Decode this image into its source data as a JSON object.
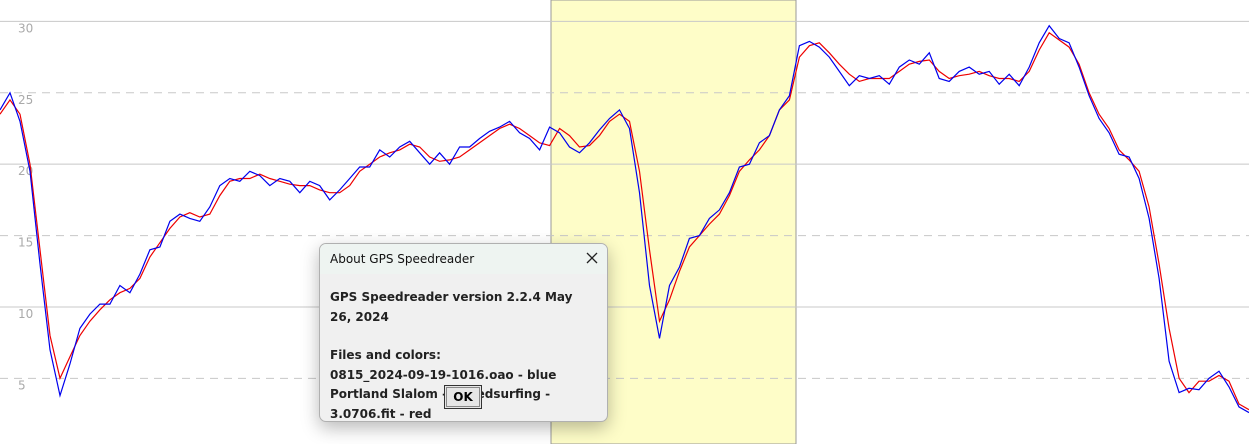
{
  "chart_data": {
    "type": "line",
    "ylim": [
      0.4,
      31.5
    ],
    "yticks": [
      5,
      10,
      15,
      20,
      25,
      30
    ],
    "grid": true,
    "series": [
      {
        "name": "0815_2024-09-19-1016.oao",
        "color": "#0000ee",
        "values": [
          23.8,
          25,
          23,
          19.5,
          13,
          7,
          3.8,
          6,
          8.5,
          9.5,
          10.2,
          10.2,
          11.5,
          11,
          12.3,
          14,
          14.2,
          16,
          16.5,
          16.2,
          16,
          17,
          18.5,
          19,
          18.8,
          19.5,
          19.2,
          18.5,
          19,
          18.8,
          18,
          18.8,
          18.5,
          17.5,
          18.2,
          19,
          19.8,
          19.8,
          21,
          20.5,
          21.2,
          21.6,
          20.8,
          20,
          20.8,
          20,
          21.2,
          21.2,
          21.8,
          22.3,
          22.6,
          23,
          22.2,
          21.8,
          21,
          22.6,
          22.2,
          21.2,
          20.8,
          21.5,
          22.4,
          23.2,
          23.8,
          22.5,
          18,
          11.5,
          7.8,
          11.5,
          12.8,
          14.8,
          15,
          16.2,
          16.8,
          18,
          19.8,
          20,
          21.5,
          22,
          23.8,
          24.8,
          28.3,
          28.6,
          28.2,
          27.5,
          26.5,
          25.5,
          26.2,
          26,
          26.2,
          25.6,
          26.8,
          27.3,
          27,
          27.8,
          26,
          25.8,
          26.5,
          26.8,
          26.3,
          26.5,
          25.6,
          26.3,
          25.5,
          26.8,
          28.5,
          29.7,
          28.8,
          28.5,
          26.8,
          24.8,
          23.2,
          22.2,
          20.7,
          20.5,
          19,
          16.2,
          12,
          6.2,
          4,
          4.3,
          4.2,
          5,
          5.5,
          4.4,
          3,
          2.6
        ]
      },
      {
        "name": "Portland Slalom - Speedsurfing - 3.0706.fit",
        "color": "#ee0000",
        "values": [
          23.5,
          24.5,
          23.5,
          20,
          14,
          8,
          5,
          6.5,
          8,
          9,
          9.8,
          10.5,
          11,
          11.3,
          12,
          13.5,
          14.5,
          15.5,
          16.3,
          16.6,
          16.3,
          16.5,
          17.8,
          18.8,
          19,
          19,
          19.3,
          19,
          18.8,
          18.6,
          18.5,
          18.5,
          18.2,
          18,
          18,
          18.5,
          19.5,
          20,
          20.5,
          20.8,
          21,
          21.4,
          21.2,
          20.5,
          20.2,
          20.3,
          20.5,
          21,
          21.5,
          22,
          22.5,
          22.8,
          22.5,
          22,
          21.5,
          21.3,
          22.5,
          22,
          21.2,
          21.3,
          22,
          23,
          23.5,
          23,
          19.5,
          14,
          9,
          10.5,
          12.5,
          14.2,
          15,
          15.8,
          16.5,
          17.8,
          19.5,
          20.3,
          21,
          22,
          23.8,
          24.5,
          27.5,
          28.3,
          28.5,
          27.8,
          27,
          26.3,
          25.8,
          26,
          26,
          26,
          26.5,
          27,
          27.2,
          27.3,
          26.5,
          26,
          26.2,
          26.3,
          26.5,
          26.2,
          26,
          26,
          25.8,
          26.5,
          28,
          29.2,
          28.7,
          28.2,
          27,
          25,
          23.5,
          22.5,
          21,
          20.3,
          19.5,
          17,
          13,
          8.5,
          5,
          4,
          4.8,
          4.8,
          5.2,
          4.8,
          3.2,
          2.8
        ]
      }
    ]
  },
  "dialog": {
    "title": "About GPS Speedreader",
    "version": "GPS Speedreader version 2.2.4 May 26, 2024",
    "files_heading": "Files and colors:",
    "files": [
      "0815_2024-09-19-1016.oao - blue",
      "Portland Slalom - Speedsurfing - 3.0706.fit - red"
    ],
    "button": "OK"
  }
}
